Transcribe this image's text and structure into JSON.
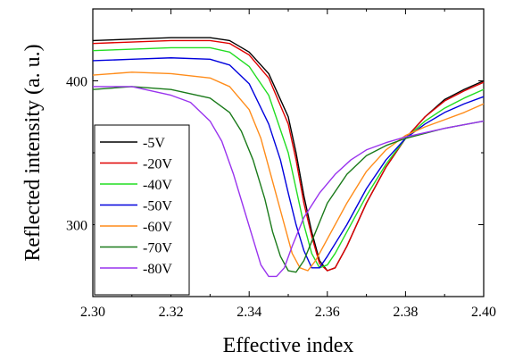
{
  "chart_data": {
    "type": "line",
    "title": "",
    "xlabel": "Effective index",
    "ylabel": "Reflected intensity (a. u.)",
    "xlim": [
      2.3,
      2.4
    ],
    "ylim": [
      250,
      450
    ],
    "xticks": [
      2.3,
      2.32,
      2.34,
      2.36,
      2.38,
      2.4
    ],
    "xtick_labels": [
      "2.30",
      "2.32",
      "2.34",
      "2.36",
      "2.38",
      "2.40"
    ],
    "yticks": [
      300,
      400
    ],
    "ytick_labels": [
      "300",
      "400"
    ],
    "grid": false,
    "legend": "bottom-left",
    "series": [
      {
        "name": "-5V",
        "color": "#000000",
        "x": [
          2.3,
          2.31,
          2.32,
          2.33,
          2.335,
          2.34,
          2.345,
          2.35,
          2.352,
          2.354,
          2.356,
          2.358,
          2.36,
          2.362,
          2.365,
          2.37,
          2.375,
          2.38,
          2.385,
          2.39,
          2.395,
          2.4
        ],
        "y": [
          428,
          429,
          430,
          430,
          428,
          420,
          405,
          375,
          350,
          320,
          295,
          275,
          268,
          270,
          285,
          315,
          340,
          360,
          375,
          387,
          394,
          400
        ]
      },
      {
        "name": "-20V",
        "color": "#e00000",
        "x": [
          2.3,
          2.31,
          2.32,
          2.33,
          2.335,
          2.34,
          2.345,
          2.35,
          2.352,
          2.354,
          2.356,
          2.358,
          2.36,
          2.362,
          2.365,
          2.37,
          2.375,
          2.38,
          2.385,
          2.39,
          2.395,
          2.4
        ],
        "y": [
          426,
          427,
          428,
          428,
          426,
          418,
          402,
          370,
          345,
          315,
          292,
          273,
          268,
          270,
          285,
          315,
          340,
          360,
          375,
          386,
          393,
          399
        ]
      },
      {
        "name": "-40V",
        "color": "#22dd22",
        "x": [
          2.3,
          2.31,
          2.32,
          2.33,
          2.335,
          2.34,
          2.345,
          2.35,
          2.352,
          2.354,
          2.356,
          2.358,
          2.36,
          2.362,
          2.365,
          2.37,
          2.375,
          2.38,
          2.385,
          2.39,
          2.395,
          2.4
        ],
        "y": [
          421,
          422,
          423,
          423,
          420,
          410,
          390,
          350,
          325,
          300,
          280,
          270,
          272,
          280,
          295,
          320,
          342,
          360,
          372,
          381,
          388,
          394
        ]
      },
      {
        "name": "-50V",
        "color": "#0000dd",
        "x": [
          2.3,
          2.31,
          2.32,
          2.33,
          2.335,
          2.34,
          2.345,
          2.348,
          2.35,
          2.352,
          2.354,
          2.356,
          2.358,
          2.36,
          2.365,
          2.37,
          2.375,
          2.38,
          2.385,
          2.39,
          2.395,
          2.4
        ],
        "y": [
          414,
          415,
          416,
          415,
          411,
          398,
          370,
          345,
          322,
          300,
          282,
          270,
          270,
          278,
          300,
          325,
          345,
          360,
          370,
          378,
          384,
          389
        ]
      },
      {
        "name": "-60V",
        "color": "#ff8c1a",
        "x": [
          2.3,
          2.31,
          2.32,
          2.33,
          2.335,
          2.34,
          2.343,
          2.346,
          2.349,
          2.351,
          2.353,
          2.355,
          2.357,
          2.36,
          2.365,
          2.37,
          2.375,
          2.38,
          2.385,
          2.39,
          2.395,
          2.4
        ],
        "y": [
          404,
          406,
          405,
          402,
          396,
          380,
          360,
          330,
          300,
          280,
          270,
          268,
          275,
          290,
          315,
          337,
          352,
          362,
          368,
          373,
          378,
          384
        ]
      },
      {
        "name": "-70V",
        "color": "#1a7a1a",
        "x": [
          2.3,
          2.31,
          2.32,
          2.33,
          2.335,
          2.338,
          2.341,
          2.344,
          2.346,
          2.348,
          2.35,
          2.352,
          2.354,
          2.357,
          2.36,
          2.365,
          2.37,
          2.375,
          2.38,
          2.39,
          2.4
        ],
        "y": [
          394,
          396,
          394,
          388,
          378,
          365,
          345,
          318,
          295,
          278,
          268,
          267,
          275,
          295,
          315,
          335,
          348,
          355,
          360,
          367,
          372
        ]
      },
      {
        "name": "-80V",
        "color": "#9933ee",
        "x": [
          2.3,
          2.31,
          2.32,
          2.325,
          2.33,
          2.333,
          2.336,
          2.339,
          2.341,
          2.343,
          2.345,
          2.347,
          2.349,
          2.351,
          2.354,
          2.358,
          2.362,
          2.366,
          2.37,
          2.375,
          2.38,
          2.39,
          2.4
        ],
        "y": [
          396,
          396,
          390,
          385,
          372,
          358,
          335,
          308,
          290,
          272,
          264,
          264,
          270,
          285,
          305,
          322,
          335,
          345,
          352,
          357,
          361,
          367,
          372
        ]
      }
    ]
  }
}
